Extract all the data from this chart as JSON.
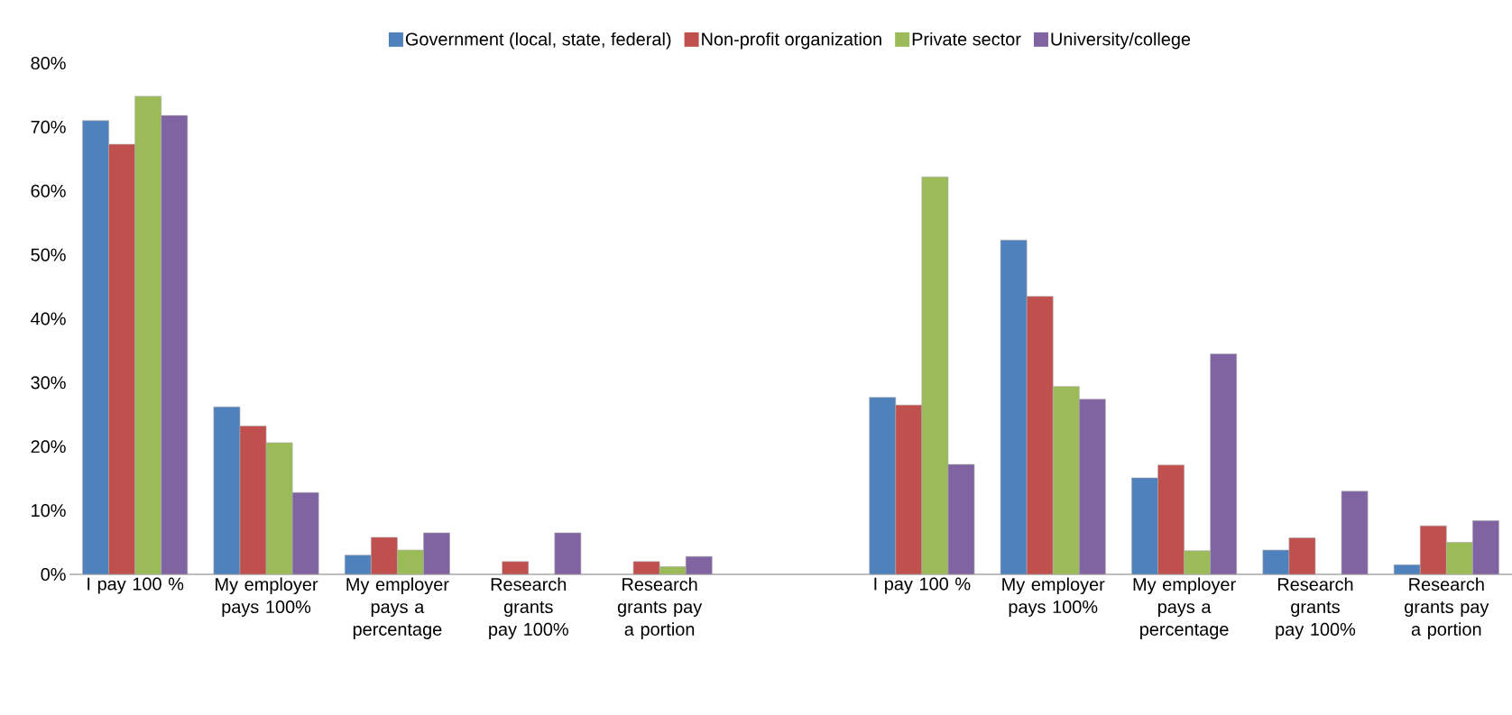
{
  "chart_data": {
    "type": "bar",
    "categories": [
      "I pay 100 %",
      "My employer pays 100%",
      "My employer pays a percentage",
      "Research grants pay 100%",
      "Research grants pay a portion",
      null,
      "I pay 100 %",
      "My employer pays 100%",
      "My employer pays a percentage",
      "Research grants pay 100%",
      "Research grants pay a portion"
    ],
    "series": [
      {
        "name": "Government (local, state, federal)",
        "color": "#4f81bd",
        "values": [
          71,
          26.2,
          3,
          null,
          null,
          null,
          27.7,
          52.3,
          15.1,
          3.8,
          1.5
        ]
      },
      {
        "name": "Non-profit organization",
        "color": "#c0504d",
        "values": [
          67.3,
          23.2,
          5.8,
          2,
          2,
          null,
          26.5,
          43.5,
          17.1,
          5.7,
          7.6
        ]
      },
      {
        "name": "Private sector",
        "color": "#9bbb59",
        "values": [
          74.8,
          20.6,
          3.8,
          null,
          1.2,
          null,
          62.2,
          29.4,
          3.7,
          null,
          5
        ]
      },
      {
        "name": "University/college",
        "color": "#8064a2",
        "values": [
          71.8,
          12.8,
          6.5,
          6.5,
          2.8,
          null,
          17.2,
          27.4,
          34.5,
          13,
          8.4
        ]
      }
    ],
    "ylim": [
      0,
      80
    ],
    "yticks": [
      {
        "value": 0,
        "label": "0%"
      },
      {
        "value": 10,
        "label": "10%"
      },
      {
        "value": 20,
        "label": "20%"
      },
      {
        "value": 30,
        "label": "30%"
      },
      {
        "value": 40,
        "label": "40%"
      },
      {
        "value": 50,
        "label": "50%"
      },
      {
        "value": 60,
        "label": "60%"
      },
      {
        "value": 70,
        "label": "70%"
      },
      {
        "value": 80,
        "label": "80%"
      }
    ],
    "legend": "top",
    "grid": false
  }
}
